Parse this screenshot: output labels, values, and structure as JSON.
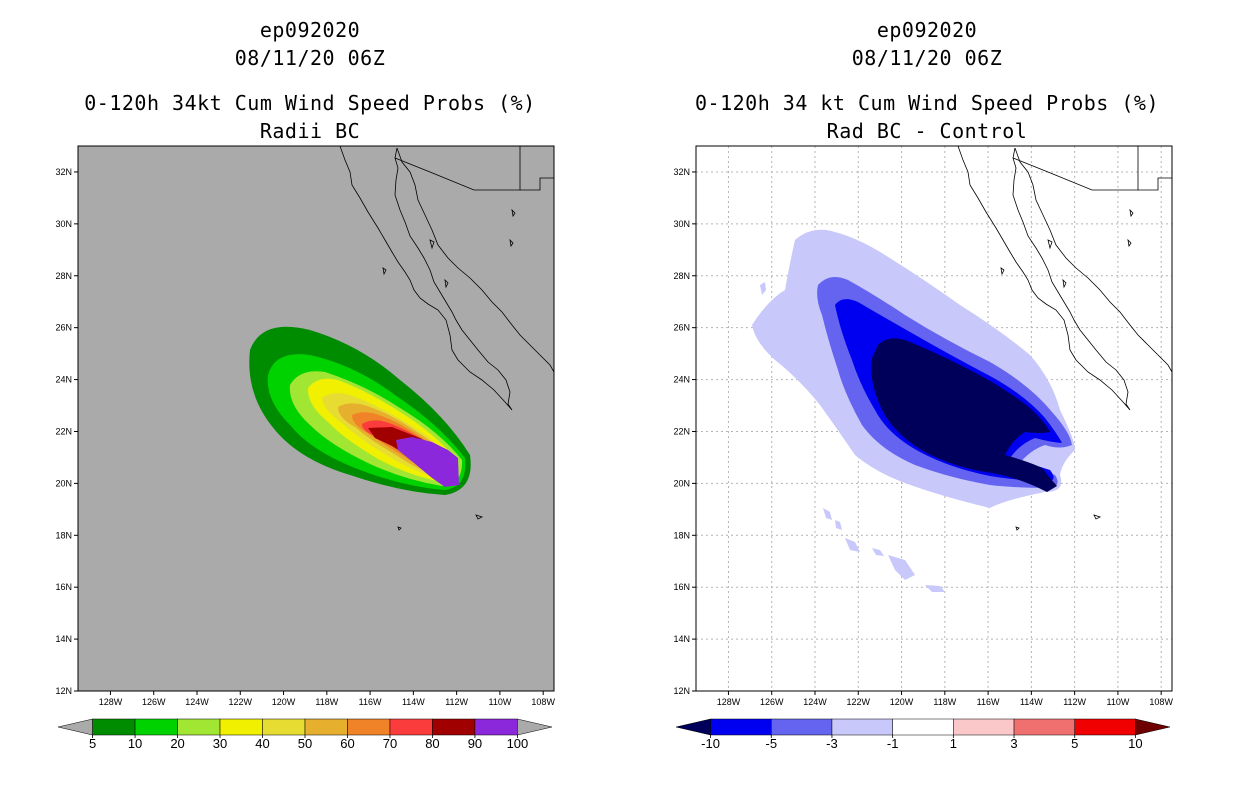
{
  "left_panel": {
    "storm_id": "ep092020",
    "datetime": "08/11/20 06Z",
    "product": "0-120h 34kt Cum Wind Speed Probs (%)",
    "subtitle": "Radii BC",
    "colorbar": {
      "labels": [
        "5",
        "10",
        "20",
        "30",
        "40",
        "50",
        "60",
        "70",
        "80",
        "90",
        "100"
      ],
      "colors": [
        "#aaaaaa",
        "#008c00",
        "#00d200",
        "#a0e632",
        "#f0f000",
        "#e6dc32",
        "#e6af2d",
        "#f08228",
        "#fa3c3c",
        "#a00000",
        "#8c28dc",
        "#aaaaaa"
      ]
    }
  },
  "right_panel": {
    "storm_id": "ep092020",
    "datetime": "08/11/20 06Z",
    "product": "0-120h 34 kt Cum Wind Speed Probs (%)",
    "subtitle": "Rad BC - Control",
    "colorbar": {
      "labels": [
        "-10",
        "-5",
        "-3",
        "-1",
        "1",
        "3",
        "5",
        "10"
      ],
      "colors": [
        "#00005a",
        "#0000f0",
        "#6464f0",
        "#c8c8fa",
        "#ffffff",
        "#fac8c8",
        "#f07070",
        "#f00000",
        "#6e0000"
      ]
    }
  },
  "axes": {
    "lon_labels": [
      "128W",
      "126W",
      "124W",
      "122W",
      "120W",
      "118W",
      "116W",
      "114W",
      "112W",
      "110W",
      "108W"
    ],
    "lat_labels": [
      "32N",
      "30N",
      "28N",
      "26N",
      "24N",
      "22N",
      "20N",
      "18N",
      "16N",
      "14N",
      "12N"
    ],
    "lon_range": [
      -129.5,
      -107.5
    ],
    "lat_range": [
      12,
      33
    ]
  },
  "colors": {
    "land_ocean_bg_left": "#aaaaaa",
    "grid_right": "#b4b4b4",
    "coast": "#000000"
  }
}
